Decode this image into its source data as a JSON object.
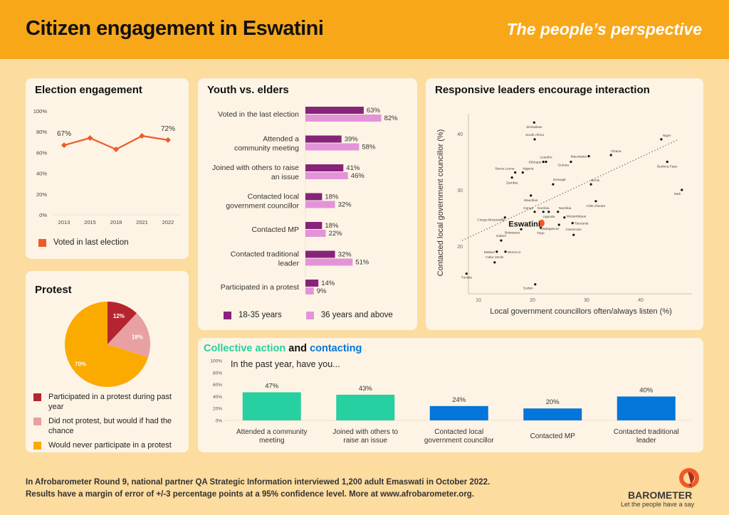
{
  "header": {
    "title": "Citizen engagement in Eswatini",
    "subtitle": "The people’s perspective"
  },
  "colors": {
    "header_bg": "#f8a719",
    "page_bg": "#fcdc9f",
    "card_bg": "#fdf4e5",
    "line_orange": "#f05a28",
    "youth": "#86247a",
    "elders": "#e394d8",
    "protest_participated": "#b5252f",
    "protest_would": "#e8a0a2",
    "protest_never": "#fbaa00",
    "collective_green": "#26d0a0",
    "contact_blue": "#0475d9"
  },
  "footer": {
    "line1": "In Afrobarometer Round 9, national partner QA Strategic Information interviewed 1,200 adult Emaswati in October 2022.",
    "line2": "Results have a margin of error of +/-3 percentage points at a 95% confidence level. More at www.afrobarometer.org."
  },
  "logo": {
    "afro": "AFR",
    "barometer": "BAROMETER",
    "tagline": "Let the people have a say"
  },
  "chart_data": [
    {
      "id": "election",
      "type": "line",
      "title": "Election engagement",
      "categories": [
        "2013",
        "2015",
        "2018",
        "2021",
        "2022"
      ],
      "series": [
        {
          "name": "Voted in last election",
          "values": [
            67,
            74,
            63,
            76,
            72
          ]
        }
      ],
      "data_labels": [
        {
          "index": 0,
          "text": "67%"
        },
        {
          "index": 4,
          "text": "72%"
        }
      ],
      "ylim": [
        0,
        100
      ],
      "yticks": [
        "0%",
        "20%",
        "40%",
        "60%",
        "80%",
        "100%"
      ],
      "ytick_values": [
        0,
        20,
        40,
        60,
        80,
        100
      ],
      "legend": "bottom",
      "grid": false
    },
    {
      "id": "protest",
      "type": "pie",
      "title": "Protest",
      "slices": [
        {
          "label": "Participated in a protest during past year",
          "value": 12,
          "text": "12%"
        },
        {
          "label": "Did not protest, but would if had the chance",
          "value": 18,
          "text": "18%"
        },
        {
          "label": "Would never participate in a protest",
          "value": 70,
          "text": "70%"
        }
      ],
      "legend": "bottom"
    },
    {
      "id": "youth",
      "type": "bar",
      "orientation": "horizontal",
      "title": "Youth vs. elders",
      "categories": [
        [
          "Voted in the last election"
        ],
        [
          "Attended a",
          "community meeting"
        ],
        [
          "Joined with others to raise",
          "an issue"
        ],
        [
          "Contacted local",
          "government councillor"
        ],
        [
          "Contacted MP"
        ],
        [
          "Contacted traditional",
          "leader"
        ],
        [
          "Participated in a protest"
        ]
      ],
      "series": [
        {
          "name": "18-35 years",
          "values": [
            63,
            39,
            41,
            18,
            18,
            32,
            14
          ]
        },
        {
          "name": "36 years and above",
          "values": [
            82,
            58,
            46,
            32,
            22,
            51,
            9
          ]
        }
      ],
      "xlim": [
        0,
        100
      ],
      "legend": "bottom"
    },
    {
      "id": "scatter",
      "type": "scatter",
      "title": "Responsive leaders encourage interaction",
      "xlabel": "Local government councillors often/always listen (%)",
      "ylabel": "Contacted local government councillor (%)",
      "xlim": [
        5,
        48
      ],
      "ylim": [
        12,
        44
      ],
      "xticks": [
        10,
        20,
        30,
        40
      ],
      "yticks": [
        20,
        30,
        40
      ],
      "trendline": {
        "style": "dotted",
        "from": [
          7,
          21
        ],
        "to": [
          47,
          39
        ]
      },
      "highlight": "Eswatini",
      "points": [
        {
          "label": "Zimbabwe",
          "x": 20.3,
          "y": 42.0
        },
        {
          "label": "South Africa",
          "x": 20.4,
          "y": 39.0
        },
        {
          "label": "Niger",
          "x": 43.8,
          "y": 39.0
        },
        {
          "label": "Ghana",
          "x": 34.5,
          "y": 36.2
        },
        {
          "label": "Mauritania",
          "x": 30.4,
          "y": 36.0
        },
        {
          "label": "Lesotho",
          "x": 22.5,
          "y": 35.0
        },
        {
          "label": "Ethiopia",
          "x": 22.0,
          "y": 35.0
        },
        {
          "label": "Guinea",
          "x": 27.1,
          "y": 35.0
        },
        {
          "label": "Burkina Faso",
          "x": 44.9,
          "y": 35.0
        },
        {
          "label": "Sierra Leone",
          "x": 16.8,
          "y": 33.1
        },
        {
          "label": "Nigeria",
          "x": 18.2,
          "y": 33.1
        },
        {
          "label": "Zambia",
          "x": 16.2,
          "y": 32.2
        },
        {
          "label": "Senegal",
          "x": 23.8,
          "y": 31.0
        },
        {
          "label": "Benin",
          "x": 30.8,
          "y": 31.0
        },
        {
          "label": "Mali",
          "x": 47.6,
          "y": 30.0
        },
        {
          "label": "Mauritius",
          "x": 19.7,
          "y": 29.0
        },
        {
          "label": "Côte d'Ivoire",
          "x": 31.7,
          "y": 28.0
        },
        {
          "label": "Kenya",
          "x": 20.4,
          "y": 26.1
        },
        {
          "label": "Gambia",
          "x": 22.0,
          "y": 26.1
        },
        {
          "label": "Uganda",
          "x": 23.0,
          "y": 26.1
        },
        {
          "label": "Namibia",
          "x": 24.7,
          "y": 26.1
        },
        {
          "label": "Mozambique",
          "x": 25.9,
          "y": 25.1
        },
        {
          "label": "Congo-Brazzaville",
          "x": 14.9,
          "y": 25.1
        },
        {
          "label": "Madagascar",
          "x": 24.9,
          "y": 23.8
        },
        {
          "label": "Tanzania",
          "x": 27.4,
          "y": 24.1
        },
        {
          "label": "Eswatini",
          "x": 21.7,
          "y": 24.1
        },
        {
          "label": "Botswana",
          "x": 17.9,
          "y": 23.0
        },
        {
          "label": "Togo",
          "x": 21.5,
          "y": 23.3
        },
        {
          "label": "Cameroon",
          "x": 27.6,
          "y": 22.0
        },
        {
          "label": "Gabon",
          "x": 14.2,
          "y": 21.0
        },
        {
          "label": "Malawi",
          "x": 13.4,
          "y": 19.0
        },
        {
          "label": "Morocco",
          "x": 15.0,
          "y": 19.0
        },
        {
          "label": "Cabo Verde",
          "x": 13.0,
          "y": 17.1
        },
        {
          "label": "Tunisia",
          "x": 7.8,
          "y": 15.1
        },
        {
          "label": "Sudan",
          "x": 20.5,
          "y": 13.2
        }
      ]
    },
    {
      "id": "collective",
      "type": "bar",
      "title_parts": [
        {
          "text": "Collective action",
          "color": "#26d0a0"
        },
        {
          "text": " and ",
          "color": "#111111"
        },
        {
          "text": "contacting",
          "color": "#0475d9"
        }
      ],
      "subtitle": "In the past year, have you...",
      "categories": [
        [
          "Attended a community",
          "meeting"
        ],
        [
          "Joined with others to",
          "raise an issue"
        ],
        [
          "Contacted local",
          "government councillor"
        ],
        [
          "Contacted MP"
        ],
        [
          "Contacted traditional",
          "leader"
        ]
      ],
      "values": [
        47,
        43,
        24,
        20,
        40
      ],
      "bar_groups": [
        "collective",
        "collective",
        "contacting",
        "contacting",
        "contacting"
      ],
      "ylim": [
        0,
        100
      ],
      "yticks": [
        "0%",
        "20%",
        "40%",
        "60%",
        "80%",
        "100%"
      ],
      "ytick_values": [
        0,
        20,
        40,
        60,
        80,
        100
      ]
    }
  ]
}
